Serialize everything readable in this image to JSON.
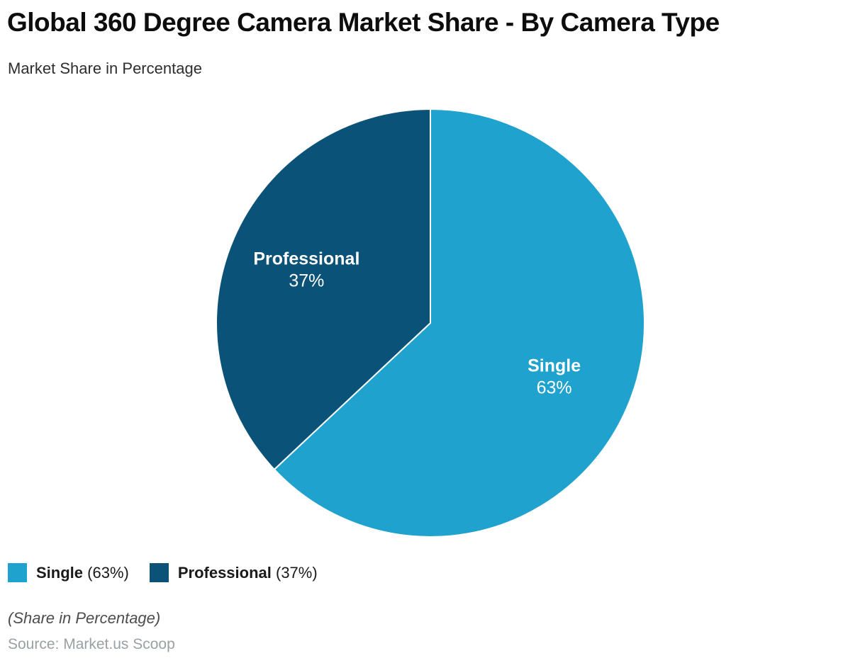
{
  "header": {
    "title": "Global 360 Degree Camera Market Share - By Camera Type",
    "subtitle": "Market Share in Percentage"
  },
  "chart_data": {
    "type": "pie",
    "title": "Global 360 Degree Camera Market Share - By Camera Type",
    "subtitle": "Market Share in Percentage",
    "unit": "percent",
    "start_angle_deg": 0,
    "direction": "clockwise",
    "slices": [
      {
        "label": "Single",
        "value": 63,
        "color": "#1FA2CE"
      },
      {
        "label": "Professional",
        "value": 37,
        "color": "#0A5278"
      }
    ],
    "slice_label_color": "#ffffff",
    "slice_separator_color": "#ffffff",
    "legend_position": "bottom-left",
    "background": "#ffffff"
  },
  "legend": {
    "items": [
      {
        "name": "Single",
        "percent_label": "(63%)",
        "color": "#1FA2CE"
      },
      {
        "name": "Professional",
        "percent_label": "(37%)",
        "color": "#0A5278"
      }
    ]
  },
  "footer": {
    "note": "(Share in Percentage)",
    "source": "Source: Market.us Scoop"
  }
}
